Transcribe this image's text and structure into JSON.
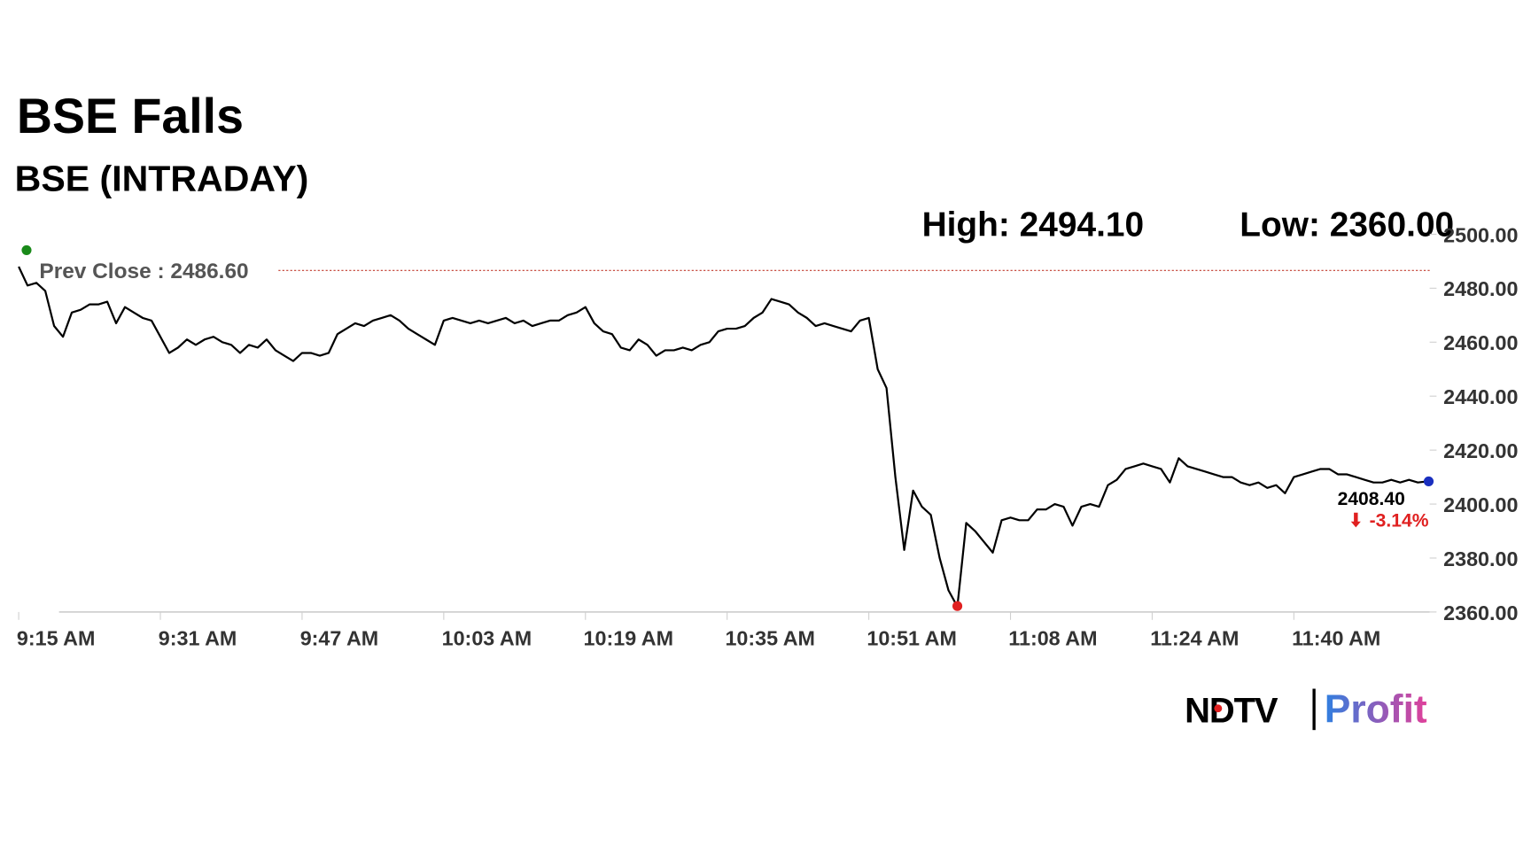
{
  "chart_data": {
    "type": "line",
    "title": "BSE Falls",
    "subtitle": "BSE (INTRADAY)",
    "high_label": "High: 2494.10",
    "high": 2494.1,
    "low_label": "Low: 2360.00",
    "low": 2360,
    "prev_close_label": "Prev Close : 2486.60",
    "prev_close": 2486.6,
    "last": 2408.4,
    "last_label": "2408.40",
    "change": -3.14,
    "change_label": "-3.14%",
    "color": "#000000",
    "categories": [
      "9:15 AM",
      null,
      null,
      null,
      null,
      null,
      null,
      null,
      null,
      null,
      null,
      null,
      null,
      null,
      null,
      null,
      "9:31 AM",
      null,
      null,
      null,
      null,
      null,
      null,
      null,
      null,
      null,
      null,
      null,
      null,
      null,
      null,
      null,
      "9:47 AM",
      null,
      null,
      null,
      null,
      null,
      null,
      null,
      null,
      null,
      null,
      null,
      null,
      null,
      null,
      null,
      "10:03 AM",
      null,
      null,
      null,
      null,
      null,
      null,
      null,
      null,
      null,
      null,
      null,
      null,
      null,
      null,
      null,
      "10:19 AM",
      null,
      null,
      null,
      null,
      null,
      null,
      null,
      null,
      null,
      null,
      null,
      null,
      null,
      null,
      null,
      "10:35 AM",
      null,
      null,
      null,
      null,
      null,
      null,
      null,
      null,
      null,
      null,
      null,
      null,
      null,
      null,
      null,
      "10:51 AM",
      null,
      null,
      null,
      null,
      null,
      null,
      null,
      null,
      null,
      null,
      null,
      null,
      null,
      null,
      null,
      "11:08 AM",
      null,
      null,
      null,
      null,
      null,
      null,
      null,
      null,
      null,
      null,
      null,
      null,
      null,
      null,
      null,
      "11:24 AM",
      null,
      null,
      null,
      null,
      null,
      null,
      null,
      null,
      null,
      null,
      null,
      null,
      null,
      null,
      null,
      "11:40 AM",
      null,
      null,
      null,
      null,
      null,
      null,
      null,
      null,
      null,
      null,
      null,
      null,
      null,
      null,
      null
    ],
    "values": [
      2488,
      2481,
      2482,
      2479,
      2466,
      2462,
      2471,
      2472,
      2474,
      2474,
      2475,
      2467,
      2473,
      2471,
      2469,
      2468,
      2462,
      2456,
      2458,
      2461,
      2459,
      2461,
      2462,
      2460,
      2459,
      2456,
      2459,
      2458,
      2461,
      2457,
      2455,
      2453,
      2456,
      2456,
      2455,
      2456,
      2463,
      2465,
      2467,
      2466,
      2468,
      2469,
      2470,
      2468,
      2465,
      2463,
      2461,
      2459,
      2468,
      2469,
      2468,
      2467,
      2468,
      2467,
      2468,
      2469,
      2467,
      2468,
      2466,
      2467,
      2468,
      2468,
      2470,
      2471,
      2473,
      2467,
      2464,
      2463,
      2458,
      2457,
      2461,
      2459,
      2455,
      2457,
      2457,
      2458,
      2457,
      2459,
      2460,
      2464,
      2465,
      2465,
      2466,
      2469,
      2471,
      2476,
      2475,
      2474,
      2471,
      2469,
      2466,
      2467,
      2466,
      2465,
      2464,
      2468,
      2469,
      2450,
      2443,
      2410,
      2383,
      2405,
      2399,
      2396,
      2380,
      2368,
      2362,
      2393,
      2390,
      2386,
      2382,
      2394,
      2395,
      2394,
      2394,
      2398,
      2398,
      2400,
      2399,
      2392,
      2399,
      2400,
      2399,
      2407,
      2409,
      2413,
      2414,
      2415,
      2414,
      2413,
      2408,
      2417,
      2414,
      2413,
      2412,
      2411,
      2410,
      2410,
      2408,
      2407,
      2408,
      2406,
      2407,
      2404,
      2410,
      2411,
      2412,
      2413,
      2413,
      2411,
      2411,
      2410,
      2409,
      2408,
      2408,
      2409,
      2408,
      2409,
      2408,
      2408.4
    ],
    "ylim": [
      2360,
      2500
    ],
    "yticks": [
      {
        "value": 2360,
        "label": "2360.00"
      },
      {
        "value": 2380,
        "label": "2380.00"
      },
      {
        "value": 2400,
        "label": "2400.00"
      },
      {
        "value": 2420,
        "label": "2420.00"
      },
      {
        "value": 2440,
        "label": "2440.00"
      },
      {
        "value": 2460,
        "label": "2460.00"
      },
      {
        "value": 2480,
        "label": "2480.00"
      },
      {
        "value": 2500,
        "label": "2500.00"
      }
    ]
  },
  "logo": {
    "left": "NDTV",
    "right": "Profit"
  }
}
